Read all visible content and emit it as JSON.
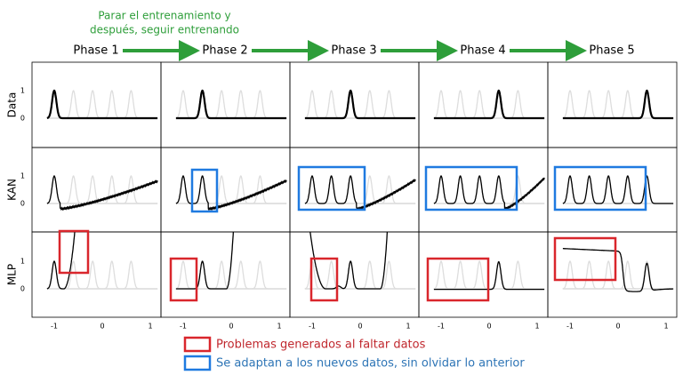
{
  "annotation": [
    "Parar el entrenamiento y",
    "después, seguir entrenando"
  ],
  "phases": [
    "Phase 1",
    "Phase 2",
    "Phase 3",
    "Phase 4",
    "Phase 5"
  ],
  "rows": [
    "Data",
    "KAN",
    "MLP"
  ],
  "y_ticks": [
    "1",
    "0"
  ],
  "x_ticks": [
    "-1",
    "0",
    "1"
  ],
  "legend": [
    "Problemas generados al faltar datos",
    "Se adaptan a los nuevos datos, sin olvidar lo anterior"
  ]
}
